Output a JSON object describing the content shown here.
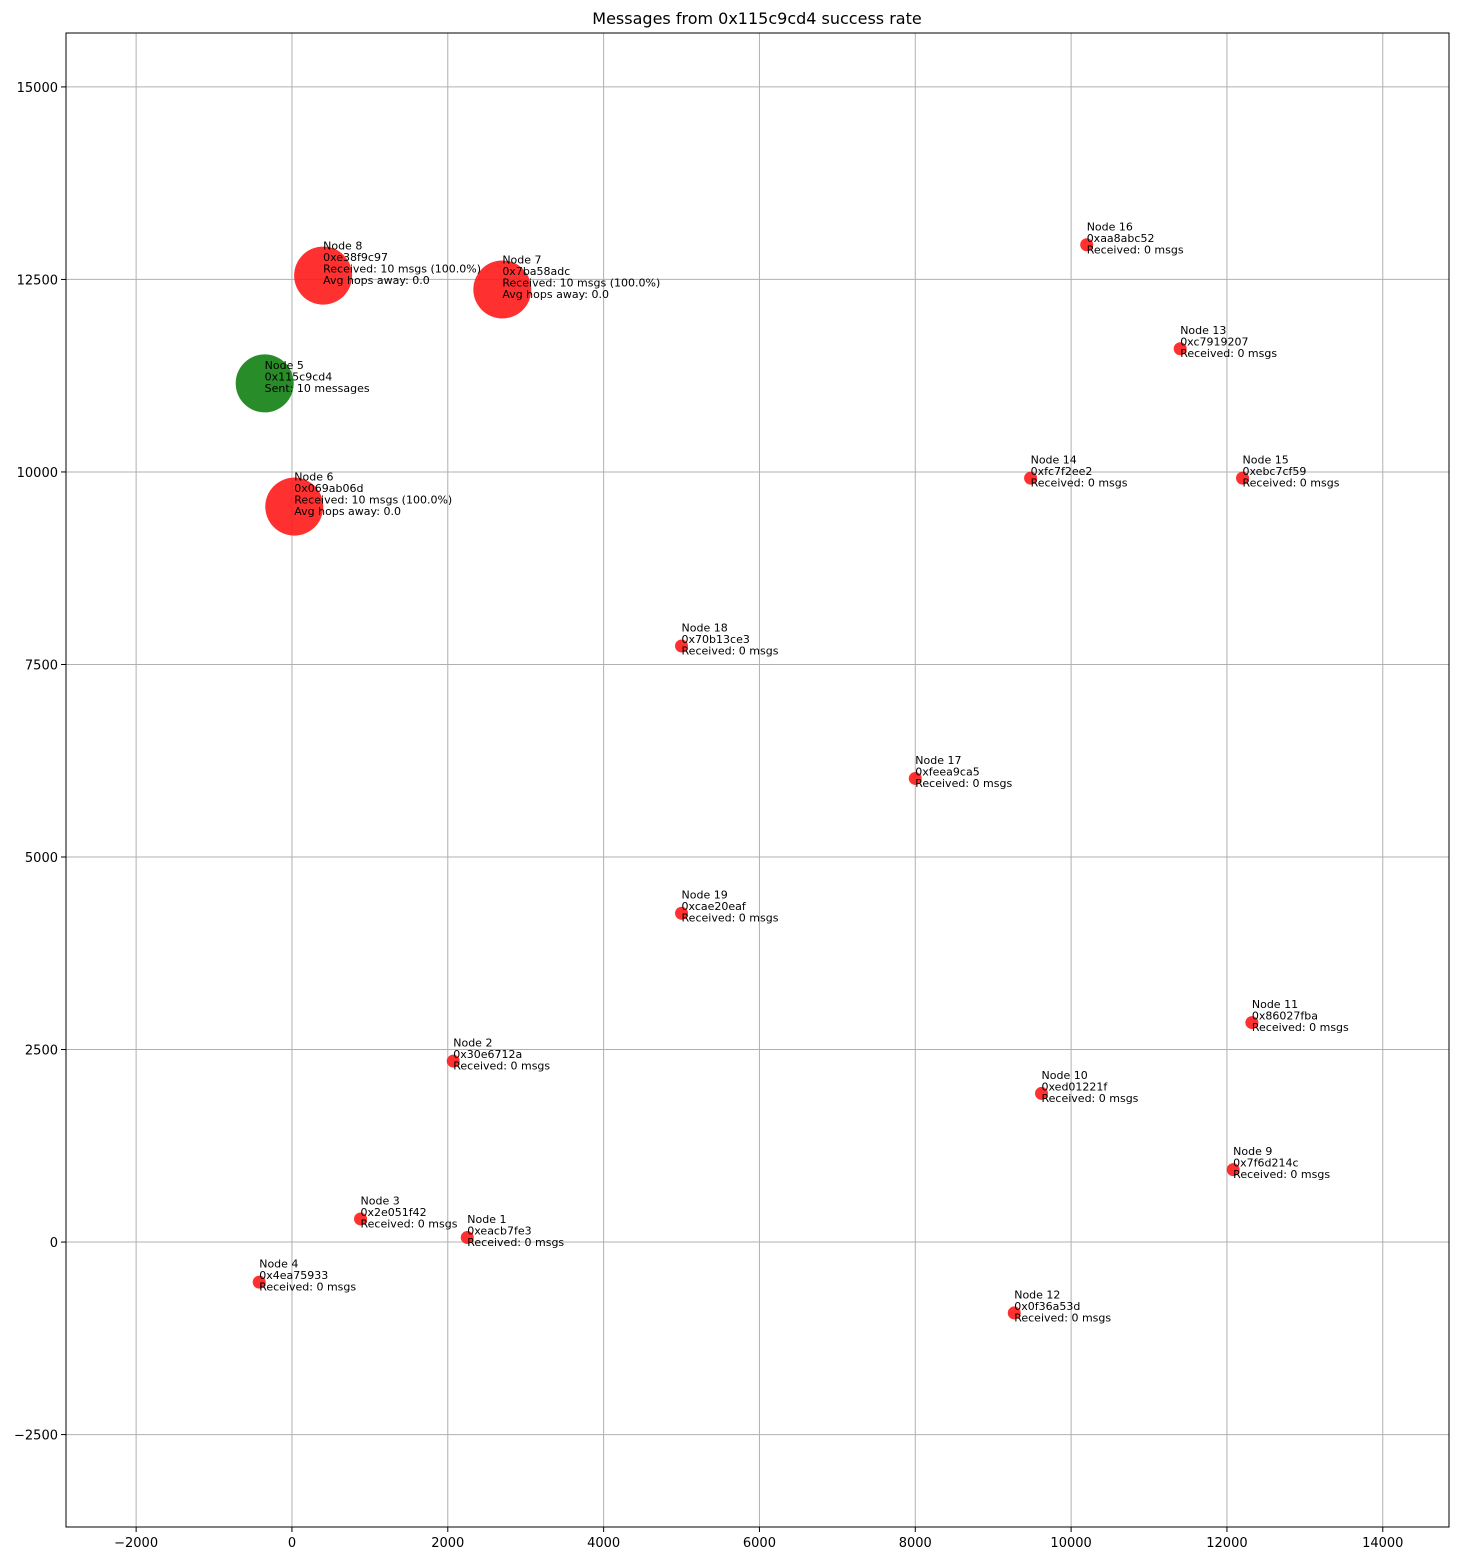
{
  "chart_data": {
    "type": "scatter",
    "title": "Messages from 0x115c9cd4 success rate",
    "xlabel": "",
    "ylabel": "",
    "xlim": [
      -2900,
      14850
    ],
    "ylim": [
      -3700,
      15700
    ],
    "x_ticks": [
      -2000,
      0,
      2000,
      4000,
      6000,
      8000,
      10000,
      12000,
      14000
    ],
    "y_ticks": [
      -2500,
      0,
      2500,
      5000,
      7500,
      10000,
      12500,
      15000
    ],
    "x_tick_labels": [
      "−2000",
      "0",
      "2000",
      "4000",
      "6000",
      "8000",
      "10000",
      "12000",
      "14000"
    ],
    "y_tick_labels": [
      "−2500",
      "0",
      "2500",
      "5000",
      "7500",
      "10000",
      "12500",
      "15000"
    ],
    "grid": true,
    "colors": {
      "sender": "#117f11",
      "receiver": "#ff1a1a"
    },
    "points": [
      {
        "x": -350,
        "y": 11150,
        "role": "sender",
        "lines": [
          "Node 5",
          "0x115c9cd4",
          "Sent: 10 messages"
        ]
      },
      {
        "x": 400,
        "y": 12550,
        "role": "receiver",
        "received": 10,
        "lines": [
          "Node 8",
          "0xe38f9c97",
          "Received: 10 msgs (100.0%)",
          "Avg hops away: 0.0"
        ]
      },
      {
        "x": 2700,
        "y": 12370,
        "role": "receiver",
        "received": 10,
        "lines": [
          "Node 7",
          "0x7ba58adc",
          "Received: 10 msgs (100.0%)",
          "Avg hops away: 0.0"
        ]
      },
      {
        "x": 30,
        "y": 9550,
        "role": "receiver",
        "received": 10,
        "lines": [
          "Node 6",
          "0x069ab06d",
          "Received: 10 msgs (100.0%)",
          "Avg hops away: 0.0"
        ]
      },
      {
        "x": 10200,
        "y": 12950,
        "role": "receiver",
        "received": 0,
        "lines": [
          "Node 16",
          "0xaa8abc52",
          "Received: 0 msgs"
        ]
      },
      {
        "x": 11400,
        "y": 11600,
        "role": "receiver",
        "received": 0,
        "lines": [
          "Node 13",
          "0xc7919207",
          "Received: 0 msgs"
        ]
      },
      {
        "x": 9480,
        "y": 9920,
        "role": "receiver",
        "received": 0,
        "lines": [
          "Node 14",
          "0xfc7f2ee2",
          "Received: 0 msgs"
        ]
      },
      {
        "x": 12200,
        "y": 9920,
        "role": "receiver",
        "received": 0,
        "lines": [
          "Node 15",
          "0xebc7cf59",
          "Received: 0 msgs"
        ]
      },
      {
        "x": 5000,
        "y": 7740,
        "role": "receiver",
        "received": 0,
        "lines": [
          "Node 18",
          "0x70b13ce3",
          "Received: 0 msgs"
        ]
      },
      {
        "x": 8000,
        "y": 6020,
        "role": "receiver",
        "received": 0,
        "lines": [
          "Node 17",
          "0xfeea9ca5",
          "Received: 0 msgs"
        ]
      },
      {
        "x": 5000,
        "y": 4270,
        "role": "receiver",
        "received": 0,
        "lines": [
          "Node 19",
          "0xcae20eaf",
          "Received: 0 msgs"
        ]
      },
      {
        "x": 12320,
        "y": 2850,
        "role": "receiver",
        "received": 0,
        "lines": [
          "Node 11",
          "0x86027fba",
          "Received: 0 msgs"
        ]
      },
      {
        "x": 2070,
        "y": 2350,
        "role": "receiver",
        "received": 0,
        "lines": [
          "Node 2",
          "0x30e6712a",
          "Received: 0 msgs"
        ]
      },
      {
        "x": 9620,
        "y": 1930,
        "role": "receiver",
        "received": 0,
        "lines": [
          "Node 10",
          "0xed01221f",
          "Received: 0 msgs"
        ]
      },
      {
        "x": 12080,
        "y": 940,
        "role": "receiver",
        "received": 0,
        "lines": [
          "Node 9",
          "0x7f6d214c",
          "Received: 0 msgs"
        ]
      },
      {
        "x": 880,
        "y": 300,
        "role": "receiver",
        "received": 0,
        "lines": [
          "Node 3",
          "0x2e051f42",
          "Received: 0 msgs"
        ]
      },
      {
        "x": 2250,
        "y": 60,
        "role": "receiver",
        "received": 0,
        "lines": [
          "Node 1",
          "0xeacb7fe3",
          "Received: 0 msgs"
        ]
      },
      {
        "x": -420,
        "y": -520,
        "role": "receiver",
        "received": 0,
        "lines": [
          "Node 4",
          "0x4ea75933",
          "Received: 0 msgs"
        ]
      },
      {
        "x": 9270,
        "y": -920,
        "role": "receiver",
        "received": 0,
        "lines": [
          "Node 12",
          "0x0f36a53d",
          "Received: 0 msgs"
        ]
      }
    ]
  }
}
